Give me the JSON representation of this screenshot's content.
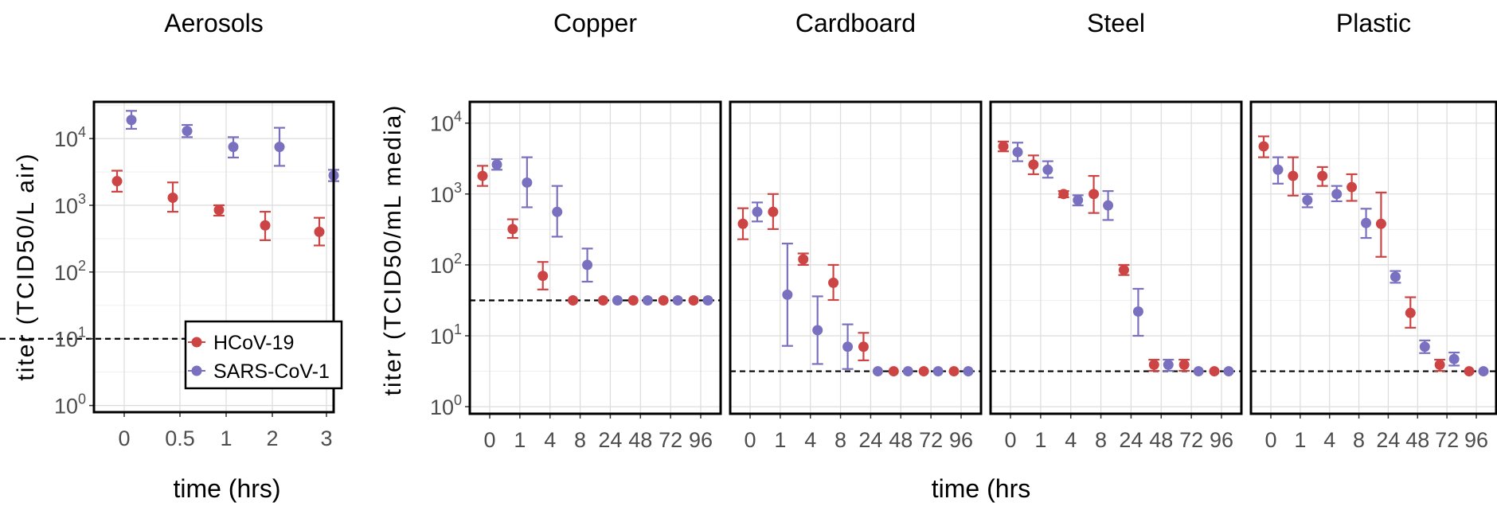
{
  "chart_data": {
    "type": "scatter",
    "colors": {
      "HCoV-19": "#cc4444",
      "SARS-CoV-1": "#7a70c0"
    },
    "legend": {
      "placement": "bottom-right of Aerosols panel",
      "entries": [
        "HCoV-19",
        "SARS-CoV-1"
      ]
    },
    "ylabel_left": "titer (TCID50/L air)",
    "ylabel_right": "titer (TCID50/mL media)",
    "xlabel_left": "time (hrs)",
    "xlabel_right": "time (hrs",
    "y_scale": "log10",
    "y_ticks": [
      "0",
      "1",
      "2",
      "3",
      "4"
    ],
    "panels": [
      {
        "title": "Aerosols",
        "x_ticks": [
          "0",
          "0.5",
          "1",
          "2",
          "3"
        ],
        "ylim_log10": [
          -0.1,
          4.55
        ],
        "detection_limit": 10,
        "series": [
          {
            "name": "HCoV-19",
            "points": [
              {
                "x": "0",
                "y": 2300,
                "lo": 1600,
                "hi": 3300
              },
              {
                "x": "0.5",
                "y": 1300,
                "lo": 800,
                "hi": 2200
              },
              {
                "x": "1",
                "y": 850,
                "lo": 700,
                "hi": 1000
              },
              {
                "x": "2",
                "y": 500,
                "lo": 300,
                "hi": 800
              },
              {
                "x": "3",
                "y": 400,
                "lo": 250,
                "hi": 650
              }
            ]
          },
          {
            "name": "SARS-CoV-1",
            "points": [
              {
                "x": "0",
                "y": 19000,
                "lo": 14000,
                "hi": 26000
              },
              {
                "x": "0.5",
                "y": 13000,
                "lo": 10500,
                "hi": 16000
              },
              {
                "x": "1",
                "y": 7500,
                "lo": 5200,
                "hi": 10500
              },
              {
                "x": "2",
                "y": 7500,
                "lo": 3900,
                "hi": 14500
              },
              {
                "x": "3",
                "y": 2800,
                "lo": 2300,
                "hi": 3400
              }
            ]
          }
        ]
      },
      {
        "title": "Copper",
        "x_ticks": [
          "0",
          "1",
          "4",
          "8",
          "24",
          "48",
          "72",
          "96"
        ],
        "ylim_log10": [
          -0.1,
          4.3
        ],
        "detection_limit": 31.6,
        "series": [
          {
            "name": "HCoV-19",
            "points": [
              {
                "x": "0",
                "y": 1800,
                "lo": 1300,
                "hi": 2500
              },
              {
                "x": "1",
                "y": 320,
                "lo": 240,
                "hi": 440
              },
              {
                "x": "4",
                "y": 70,
                "lo": 45,
                "hi": 110
              },
              {
                "x": "8",
                "y": 31.6,
                "lo": 31.6,
                "hi": 31.6
              },
              {
                "x": "24",
                "y": 31.6,
                "lo": 31.6,
                "hi": 31.6
              },
              {
                "x": "48",
                "y": 31.6,
                "lo": 31.6,
                "hi": 31.6
              },
              {
                "x": "72",
                "y": 31.6,
                "lo": 31.6,
                "hi": 31.6
              },
              {
                "x": "96",
                "y": 31.6,
                "lo": 31.6,
                "hi": 31.6
              }
            ]
          },
          {
            "name": "SARS-CoV-1",
            "points": [
              {
                "x": "0",
                "y": 2600,
                "lo": 2200,
                "hi": 3100
              },
              {
                "x": "1",
                "y": 1450,
                "lo": 650,
                "hi": 3300
              },
              {
                "x": "4",
                "y": 560,
                "lo": 250,
                "hi": 1300
              },
              {
                "x": "8",
                "y": 100,
                "lo": 58,
                "hi": 170
              },
              {
                "x": "24",
                "y": 31.6,
                "lo": 31.6,
                "hi": 31.6
              },
              {
                "x": "48",
                "y": 31.6,
                "lo": 31.6,
                "hi": 31.6
              },
              {
                "x": "72",
                "y": 31.6,
                "lo": 31.6,
                "hi": 31.6
              },
              {
                "x": "96",
                "y": 31.6,
                "lo": 31.6,
                "hi": 31.6
              }
            ]
          }
        ]
      },
      {
        "title": "Cardboard",
        "x_ticks": [
          "0",
          "1",
          "4",
          "8",
          "24",
          "48",
          "72",
          "96"
        ],
        "ylim_log10": [
          -0.1,
          4.3
        ],
        "detection_limit": 3.16,
        "series": [
          {
            "name": "HCoV-19",
            "points": [
              {
                "x": "0",
                "y": 380,
                "lo": 230,
                "hi": 630
              },
              {
                "x": "1",
                "y": 560,
                "lo": 320,
                "hi": 1000
              },
              {
                "x": "4",
                "y": 120,
                "lo": 100,
                "hi": 145
              },
              {
                "x": "8",
                "y": 56,
                "lo": 32,
                "hi": 100
              },
              {
                "x": "24",
                "y": 7,
                "lo": 4.5,
                "hi": 11
              },
              {
                "x": "48",
                "y": 3.16,
                "lo": 3.16,
                "hi": 3.16
              },
              {
                "x": "72",
                "y": 3.16,
                "lo": 3.16,
                "hi": 3.16
              },
              {
                "x": "96",
                "y": 3.16,
                "lo": 3.16,
                "hi": 3.16
              }
            ]
          },
          {
            "name": "SARS-CoV-1",
            "points": [
              {
                "x": "0",
                "y": 560,
                "lo": 410,
                "hi": 760
              },
              {
                "x": "1",
                "y": 38,
                "lo": 7.2,
                "hi": 200
              },
              {
                "x": "4",
                "y": 12,
                "lo": 4,
                "hi": 36
              },
              {
                "x": "8",
                "y": 7,
                "lo": 3.4,
                "hi": 14.5
              },
              {
                "x": "24",
                "y": 3.16,
                "lo": 3.16,
                "hi": 3.16
              },
              {
                "x": "48",
                "y": 3.16,
                "lo": 3.16,
                "hi": 3.16
              },
              {
                "x": "72",
                "y": 3.16,
                "lo": 3.16,
                "hi": 3.16
              },
              {
                "x": "96",
                "y": 3.16,
                "lo": 3.16,
                "hi": 3.16
              }
            ]
          }
        ]
      },
      {
        "title": "Steel",
        "x_ticks": [
          "0",
          "1",
          "4",
          "8",
          "24",
          "48",
          "72",
          "96"
        ],
        "ylim_log10": [
          -0.1,
          4.3
        ],
        "detection_limit": 3.16,
        "series": [
          {
            "name": "HCoV-19",
            "points": [
              {
                "x": "0",
                "y": 4700,
                "lo": 4000,
                "hi": 5500
              },
              {
                "x": "1",
                "y": 2600,
                "lo": 1900,
                "hi": 3500
              },
              {
                "x": "4",
                "y": 1000,
                "lo": 900,
                "hi": 1100
              },
              {
                "x": "8",
                "y": 1000,
                "lo": 540,
                "hi": 1800
              },
              {
                "x": "24",
                "y": 85,
                "lo": 72,
                "hi": 100
              },
              {
                "x": "48",
                "y": 3.9,
                "lo": 3.2,
                "hi": 4.6
              },
              {
                "x": "72",
                "y": 3.9,
                "lo": 3.2,
                "hi": 4.6
              },
              {
                "x": "96",
                "y": 3.16,
                "lo": 3.16,
                "hi": 3.16
              }
            ]
          },
          {
            "name": "SARS-CoV-1",
            "points": [
              {
                "x": "0",
                "y": 3900,
                "lo": 2900,
                "hi": 5300
              },
              {
                "x": "1",
                "y": 2200,
                "lo": 1700,
                "hi": 2900
              },
              {
                "x": "4",
                "y": 820,
                "lo": 690,
                "hi": 960
              },
              {
                "x": "8",
                "y": 690,
                "lo": 430,
                "hi": 1100
              },
              {
                "x": "24",
                "y": 22,
                "lo": 10,
                "hi": 46
              },
              {
                "x": "48",
                "y": 3.9,
                "lo": 3.2,
                "hi": 4.6
              },
              {
                "x": "72",
                "y": 3.16,
                "lo": 3.16,
                "hi": 3.16
              },
              {
                "x": "96",
                "y": 3.16,
                "lo": 3.16,
                "hi": 3.16
              }
            ]
          }
        ]
      },
      {
        "title": "Plastic",
        "x_ticks": [
          "0",
          "1",
          "4",
          "8",
          "24",
          "48",
          "72",
          "96"
        ],
        "ylim_log10": [
          -0.1,
          4.3
        ],
        "detection_limit": 3.16,
        "series": [
          {
            "name": "HCoV-19",
            "points": [
              {
                "x": "0",
                "y": 4700,
                "lo": 3300,
                "hi": 6500
              },
              {
                "x": "1",
                "y": 1800,
                "lo": 950,
                "hi": 3300
              },
              {
                "x": "4",
                "y": 1800,
                "lo": 1300,
                "hi": 2400
              },
              {
                "x": "8",
                "y": 1250,
                "lo": 800,
                "hi": 1900
              },
              {
                "x": "24",
                "y": 380,
                "lo": 130,
                "hi": 1050
              },
              {
                "x": "48",
                "y": 21,
                "lo": 13,
                "hi": 35
              },
              {
                "x": "72",
                "y": 3.9,
                "lo": 3.2,
                "hi": 4.6
              },
              {
                "x": "96",
                "y": 3.16,
                "lo": 3.16,
                "hi": 3.16
              }
            ]
          },
          {
            "name": "SARS-CoV-1",
            "points": [
              {
                "x": "0",
                "y": 2200,
                "lo": 1400,
                "hi": 3300
              },
              {
                "x": "1",
                "y": 820,
                "lo": 650,
                "hi": 1000
              },
              {
                "x": "4",
                "y": 1000,
                "lo": 790,
                "hi": 1300
              },
              {
                "x": "8",
                "y": 390,
                "lo": 240,
                "hi": 620
              },
              {
                "x": "24",
                "y": 68,
                "lo": 56,
                "hi": 82
              },
              {
                "x": "48",
                "y": 7,
                "lo": 5.7,
                "hi": 8.6
              },
              {
                "x": "72",
                "y": 4.7,
                "lo": 3.8,
                "hi": 5.8
              },
              {
                "x": "96",
                "y": 3.16,
                "lo": 3.16,
                "hi": 3.16
              }
            ]
          }
        ]
      }
    ]
  }
}
